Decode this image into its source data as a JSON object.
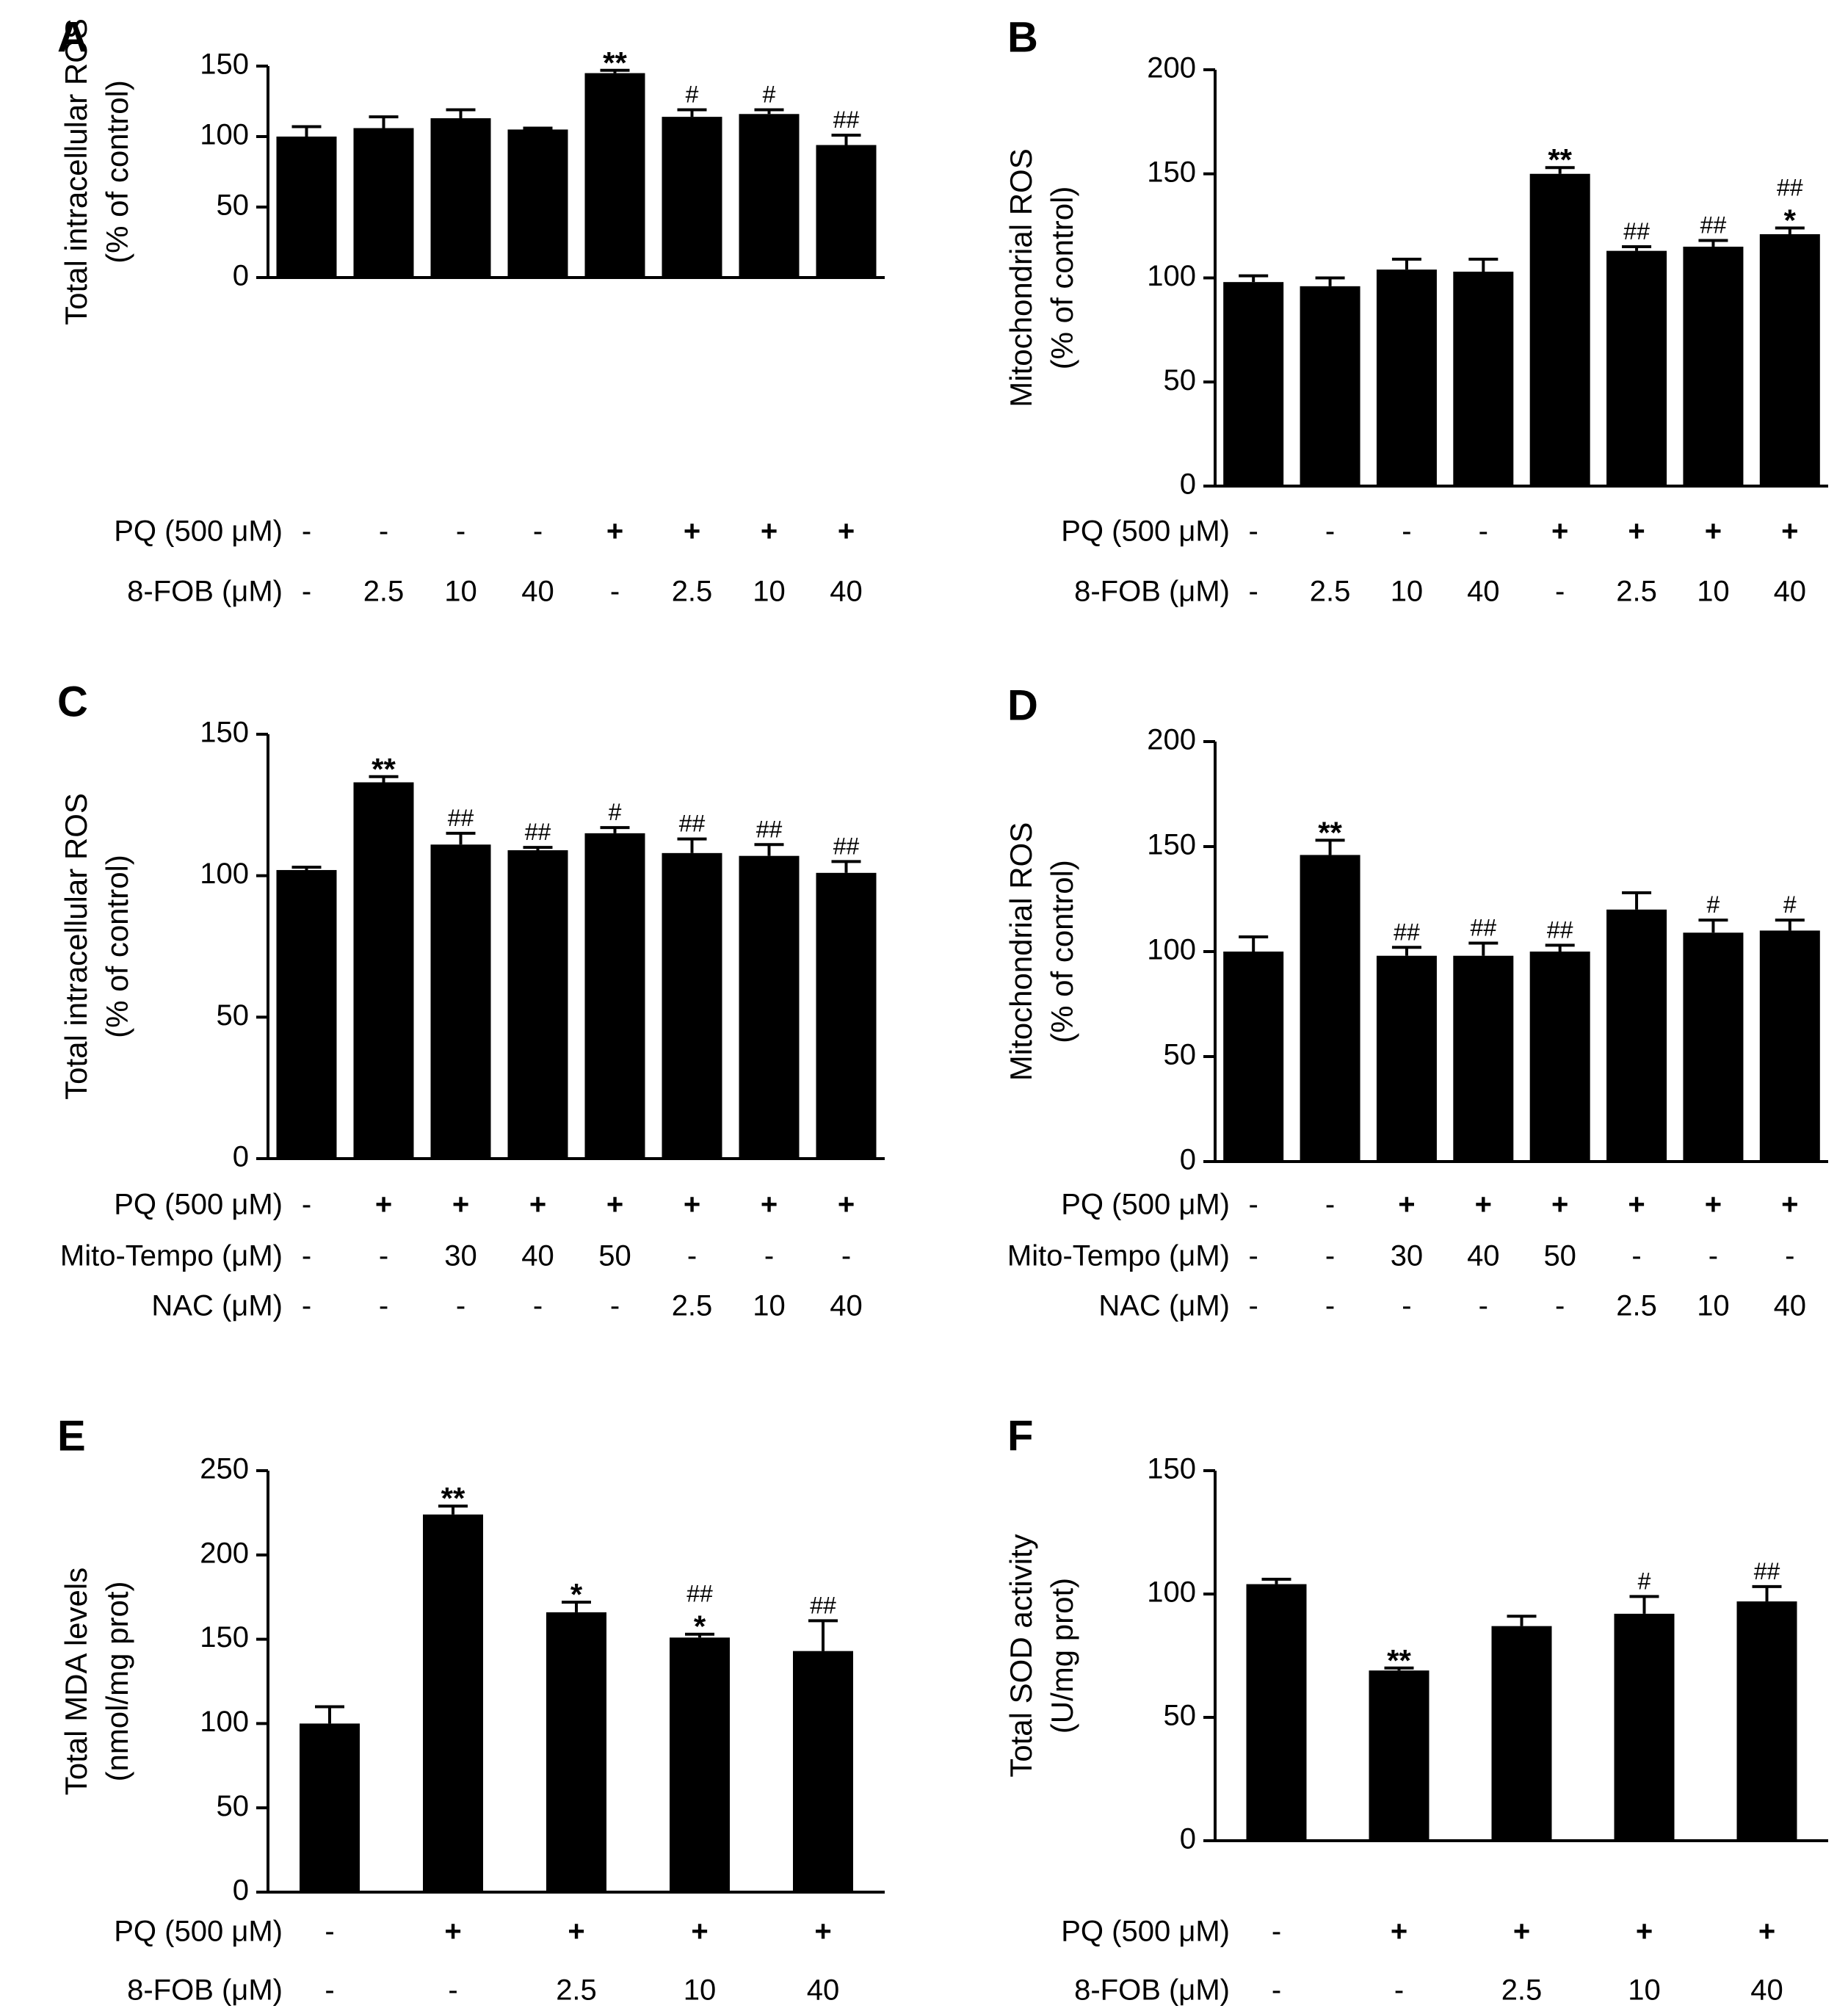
{
  "figure": {
    "background": "#ffffff",
    "bar_color": "#000000"
  },
  "chart_data": [
    {
      "id": "A",
      "type": "bar",
      "ylabel": [
        "Total intracellular ROS",
        "(% of control)"
      ],
      "ylim": [
        0,
        150
      ],
      "yticks": [
        0,
        50,
        100,
        150
      ],
      "values": [
        100,
        106,
        113,
        105,
        145,
        114,
        116,
        94
      ],
      "errors": [
        7,
        8,
        6,
        1,
        2,
        5,
        3,
        7
      ],
      "annotations": [
        [],
        [],
        [],
        [],
        [
          "**"
        ],
        [
          "#"
        ],
        [
          "#"
        ],
        [
          "##"
        ]
      ],
      "conditions": [
        {
          "label": "PQ (500 μM)",
          "values": [
            "-",
            "-",
            "-",
            "-",
            "+",
            "+",
            "+",
            "+"
          ]
        },
        {
          "label": "8-FOB (μM)",
          "values": [
            "-",
            "2.5",
            "10",
            "40",
            "-",
            "2.5",
            "10",
            "40"
          ]
        }
      ]
    },
    {
      "id": "B",
      "type": "bar",
      "ylabel": [
        "Mitochondrial ROS",
        "(% of control)"
      ],
      "ylim": [
        0,
        200
      ],
      "yticks": [
        0,
        50,
        100,
        150,
        200
      ],
      "values": [
        98,
        96,
        104,
        103,
        150,
        113,
        115,
        121
      ],
      "errors": [
        3,
        4,
        5,
        6,
        3,
        2,
        3,
        3
      ],
      "annotations": [
        [],
        [],
        [],
        [],
        [
          "**"
        ],
        [
          "##"
        ],
        [
          "##"
        ],
        [
          "##",
          "*"
        ]
      ],
      "conditions": [
        {
          "label": "PQ (500 μM)",
          "values": [
            "-",
            "-",
            "-",
            "-",
            "+",
            "+",
            "+",
            "+"
          ]
        },
        {
          "label": "8-FOB (μM)",
          "values": [
            "-",
            "2.5",
            "10",
            "40",
            "-",
            "2.5",
            "10",
            "40"
          ]
        }
      ]
    },
    {
      "id": "C",
      "type": "bar",
      "ylabel": [
        "Total intracellular ROS",
        "(% of control)"
      ],
      "ylim": [
        0,
        150
      ],
      "yticks": [
        0,
        50,
        100,
        150
      ],
      "values": [
        102,
        133,
        111,
        109,
        115,
        108,
        107,
        101
      ],
      "errors": [
        1,
        2,
        4,
        1,
        2,
        5,
        4,
        4
      ],
      "annotations": [
        [],
        [
          "**"
        ],
        [
          "##"
        ],
        [
          "##"
        ],
        [
          "#"
        ],
        [
          "##"
        ],
        [
          "##"
        ],
        [
          "##"
        ]
      ],
      "conditions": [
        {
          "label": "PQ (500 μM)",
          "values": [
            "-",
            "+",
            "+",
            "+",
            "+",
            "+",
            "+",
            "+"
          ]
        },
        {
          "label": "Mito-Tempo (μM)",
          "values": [
            "-",
            "-",
            "30",
            "40",
            "50",
            "-",
            "-",
            "-"
          ]
        },
        {
          "label": "NAC (μM)",
          "values": [
            "-",
            "-",
            "-",
            "-",
            "-",
            "2.5",
            "10",
            "40"
          ]
        }
      ]
    },
    {
      "id": "D",
      "type": "bar",
      "ylabel": [
        "Mitochondrial ROS",
        "(% of control)"
      ],
      "ylim": [
        0,
        200
      ],
      "yticks": [
        0,
        50,
        100,
        150,
        200
      ],
      "values": [
        100,
        146,
        98,
        98,
        100,
        120,
        109,
        110
      ],
      "errors": [
        7,
        7,
        4,
        6,
        3,
        8,
        6,
        5
      ],
      "annotations": [
        [],
        [
          "**"
        ],
        [
          "##"
        ],
        [
          "##"
        ],
        [
          "##"
        ],
        [],
        [
          "#"
        ],
        [
          "#"
        ]
      ],
      "conditions": [
        {
          "label": "PQ (500 μM)",
          "values": [
            "-",
            "-",
            "+",
            "+",
            "+",
            "+",
            "+",
            "+"
          ]
        },
        {
          "label": "Mito-Tempo (μM)",
          "values": [
            "-",
            "-",
            "30",
            "40",
            "50",
            "-",
            "-",
            "-"
          ]
        },
        {
          "label": "NAC (μM)",
          "values": [
            "-",
            "-",
            "-",
            "-",
            "-",
            "2.5",
            "10",
            "40"
          ]
        }
      ]
    },
    {
      "id": "E",
      "type": "bar",
      "ylabel": [
        "Total MDA levels",
        "(nmol/mg prot)"
      ],
      "ylim": [
        0,
        250
      ],
      "yticks": [
        0,
        50,
        100,
        150,
        200,
        250
      ],
      "values": [
        100,
        224,
        166,
        151,
        143
      ],
      "errors": [
        10,
        5,
        6,
        2,
        18
      ],
      "annotations": [
        [],
        [
          "**"
        ],
        [
          "*"
        ],
        [
          "##",
          "*"
        ],
        [
          "##"
        ]
      ],
      "conditions": [
        {
          "label": "PQ (500 μM)",
          "values": [
            "-",
            "+",
            "+",
            "+",
            "+"
          ]
        },
        {
          "label": "8-FOB (μM)",
          "values": [
            "-",
            "-",
            "2.5",
            "10",
            "40"
          ]
        }
      ]
    },
    {
      "id": "F",
      "type": "bar",
      "ylabel": [
        "Total SOD activity",
        "(U/mg prot)"
      ],
      "ylim": [
        0,
        150
      ],
      "yticks": [
        0,
        50,
        100,
        150
      ],
      "values": [
        104,
        69,
        87,
        92,
        97
      ],
      "errors": [
        2,
        1,
        4,
        7,
        6
      ],
      "annotations": [
        [],
        [
          "**"
        ],
        [],
        [
          "#"
        ],
        [
          "##"
        ]
      ],
      "conditions": [
        {
          "label": "PQ (500 μM)",
          "values": [
            "-",
            "+",
            "+",
            "+",
            "+"
          ]
        },
        {
          "label": "8-FOB (μM)",
          "values": [
            "-",
            "-",
            "2.5",
            "10",
            "40"
          ]
        }
      ]
    }
  ]
}
